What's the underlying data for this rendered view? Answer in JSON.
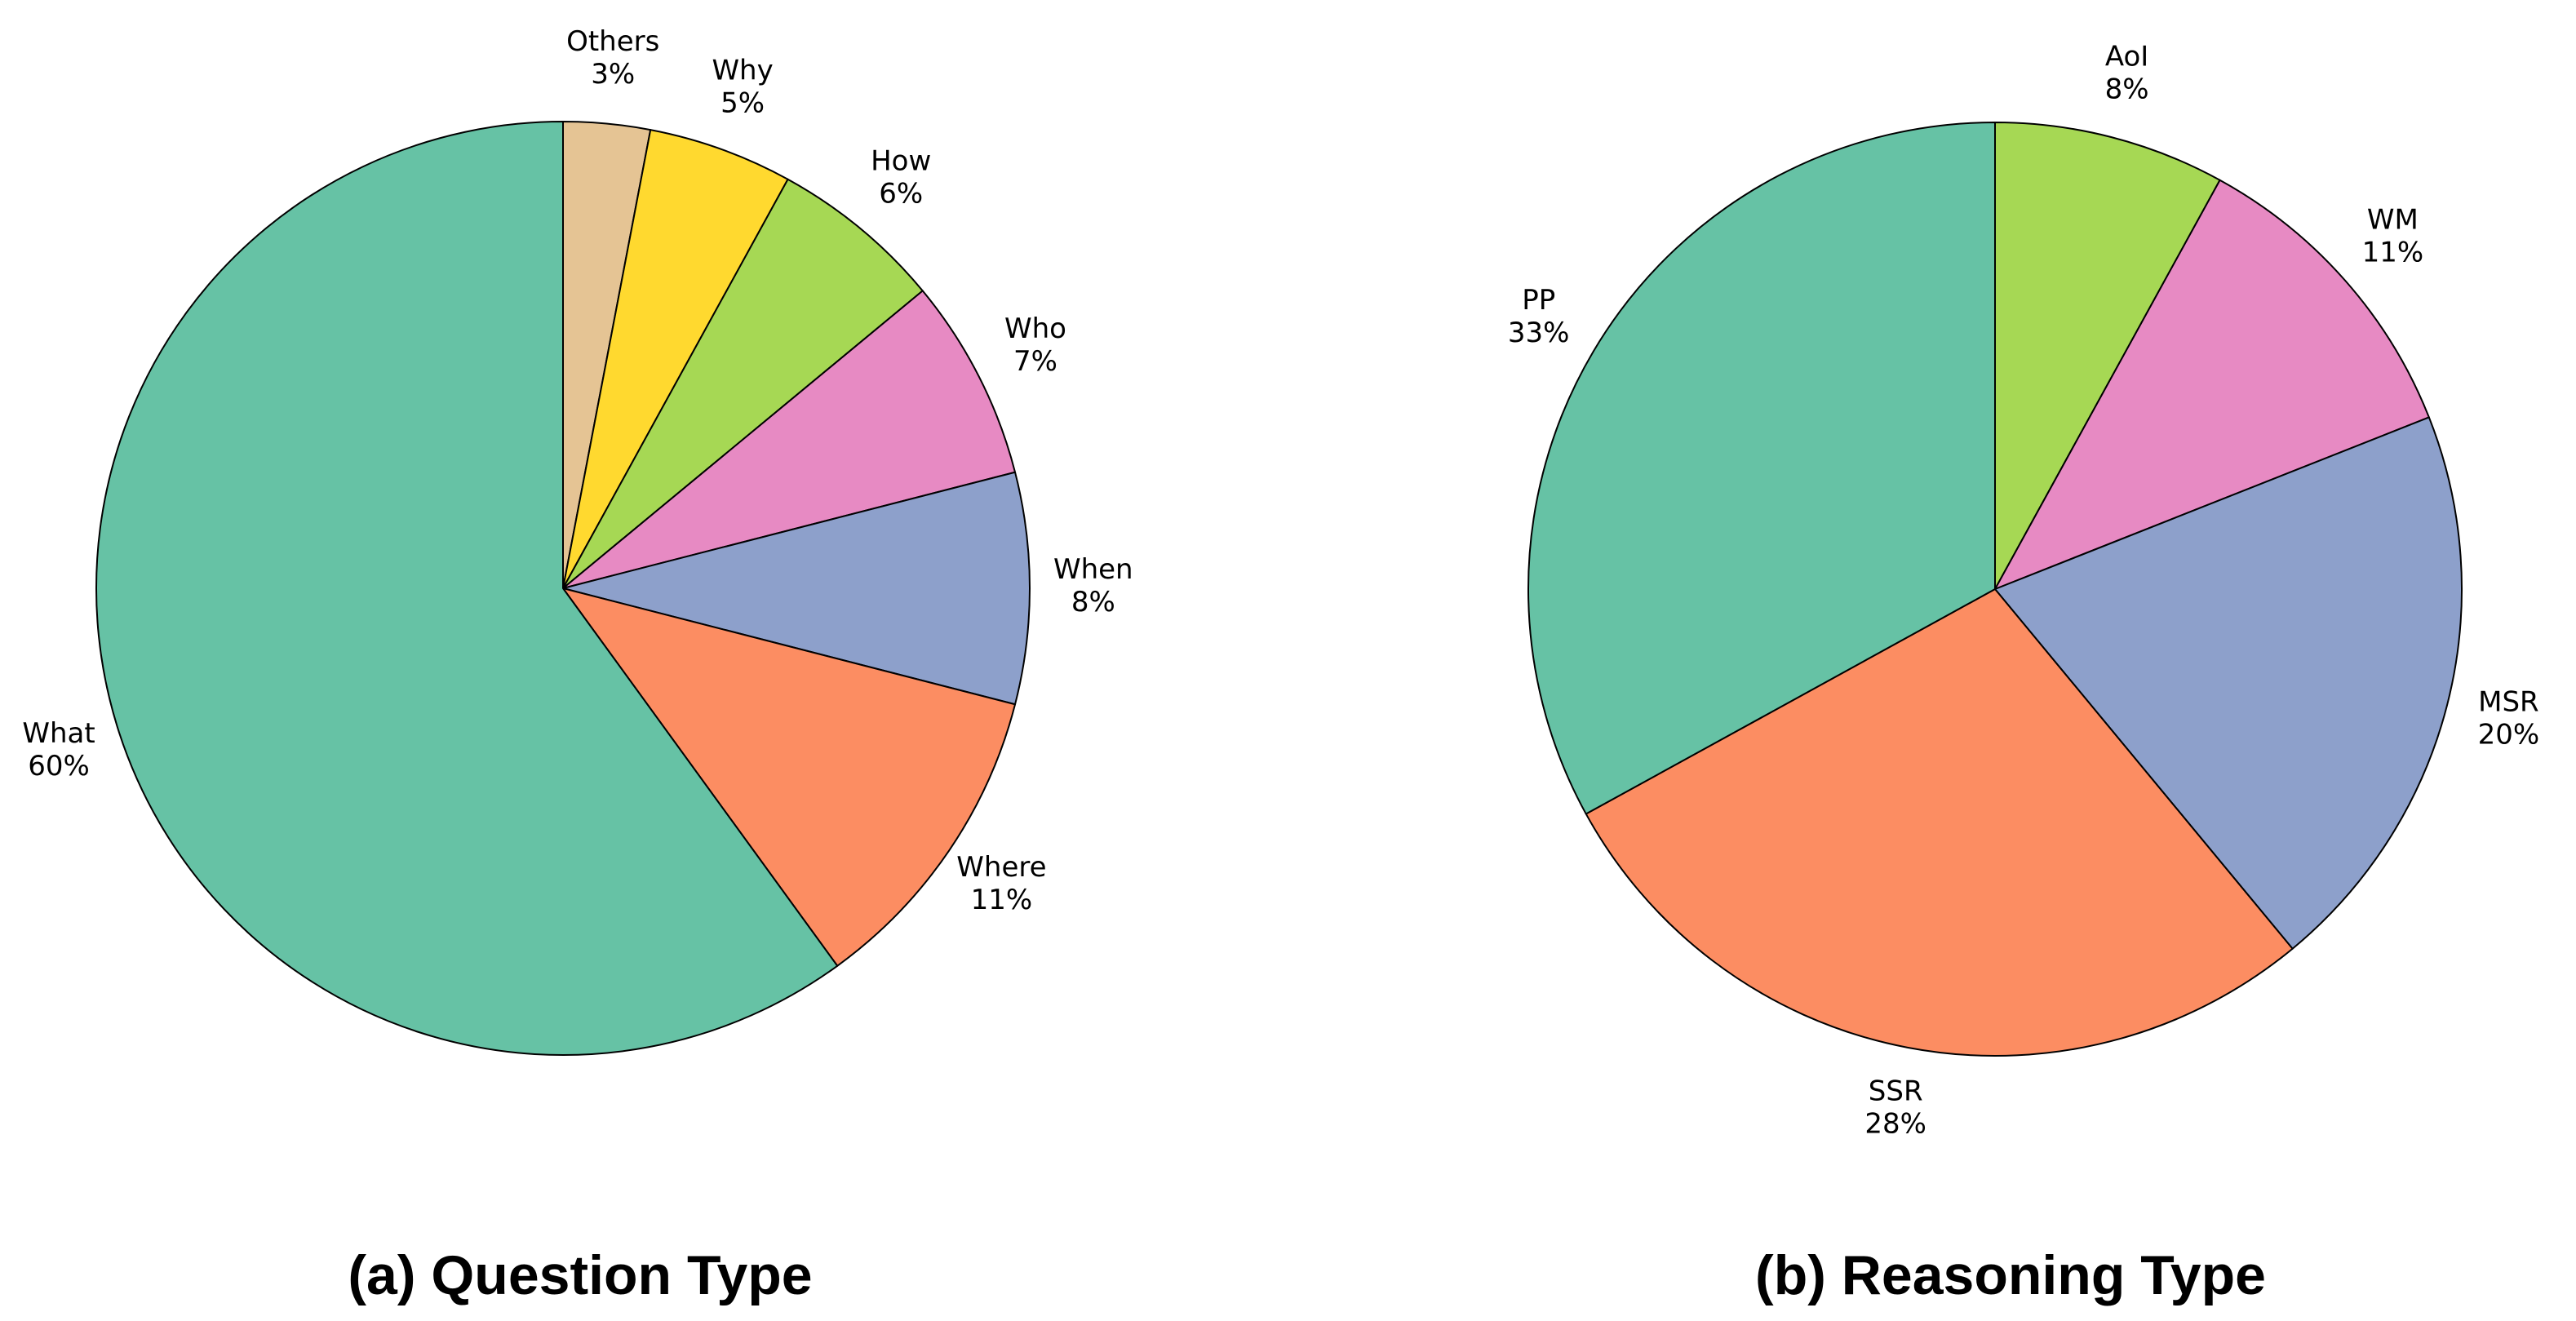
{
  "figure": {
    "background": "#ffffff",
    "text_color": "#000000",
    "edge_color": "#000000"
  },
  "chart_data": [
    {
      "type": "pie",
      "title": "(a) Question Type",
      "labels": [
        "Others",
        "Why",
        "How",
        "Who",
        "When",
        "Where",
        "What"
      ],
      "values": [
        3,
        5,
        6,
        7,
        8,
        11,
        60
      ],
      "unit": "%",
      "colors": [
        "#e5c494",
        "#ffd92f",
        "#a6d854",
        "#e78ac3",
        "#8da0cb",
        "#fc8d62",
        "#66c2a5"
      ],
      "slice_labels": [
        "Others 3%",
        "Why 5%",
        "How 6%",
        "Who 7%",
        "When 8%",
        "Where 11%",
        "What 60%"
      ],
      "start_angle": "12-oclock",
      "direction": "clockwise",
      "label_distance": 1.136,
      "legend": "none",
      "grid": "off"
    },
    {
      "type": "pie",
      "title": "(b) Reasoning Type",
      "labels": [
        "AoI",
        "WM",
        "MSR",
        "SSR",
        "PP"
      ],
      "values": [
        8,
        11,
        20,
        28,
        33
      ],
      "unit": "%",
      "colors": [
        "#a6d854",
        "#e78ac3",
        "#8da0cb",
        "#fc8d62",
        "#66c2a5"
      ],
      "slice_labels": [
        "AoI 8%",
        "WM 11%",
        "MSR 20%",
        "SSR 28%",
        "PP 33%"
      ],
      "start_angle": "12-oclock",
      "direction": "clockwise",
      "label_distance": 1.136,
      "legend": "none",
      "grid": "off"
    }
  ]
}
